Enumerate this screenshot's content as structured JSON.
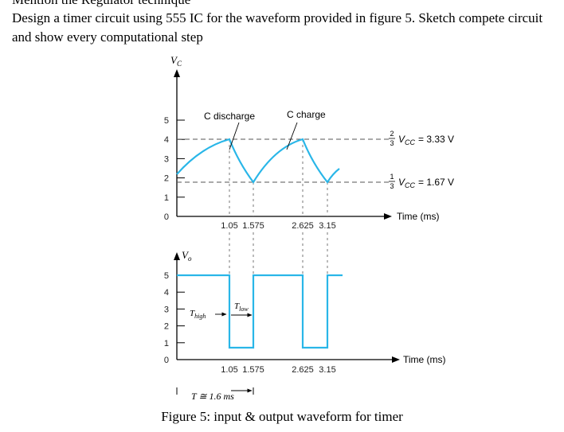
{
  "header_fragment": "Mention the Regulator technique",
  "question": "Design a timer circuit using 555 IC for the waveform provided in figure 5. Sketch compete circuit and show every computational step",
  "caption": "Figure 5: input & output waveform for timer",
  "colors": {
    "trace": "#29b6e8",
    "axis": "#000000",
    "dash": "#555555"
  },
  "top_plot": {
    "ylabel_main": "V",
    "ylabel_sub": "C",
    "yticks": [
      "0",
      "1",
      "2",
      "3",
      "4",
      "5"
    ],
    "xticks": [
      "1.05",
      "1.575",
      "2.625",
      "3.15"
    ],
    "xlabel": "Time (ms)",
    "discharge_label": "C discharge",
    "charge_label": "C charge",
    "upper_level_frac": "2",
    "upper_level_denom": "3",
    "upper_level_text": "V",
    "upper_level_sub": "CC",
    "upper_level_value": "= 3.33 V",
    "lower_level_frac": "1",
    "lower_level_denom": "3",
    "lower_level_text": "V",
    "lower_level_sub": "CC",
    "lower_level_value": "= 1.67 V"
  },
  "bottom_plot": {
    "ylabel_main": "V",
    "ylabel_sub": "o",
    "yticks": [
      "0",
      "1",
      "2",
      "3",
      "4",
      "5"
    ],
    "xticks": [
      "1.05",
      "1.575",
      "2.625",
      "3.15"
    ],
    "xlabel": "Time (ms)",
    "thigh_main": "T",
    "thigh_sub": "high",
    "tlow_main": "T",
    "tlow_sub": "low",
    "period_label": "T ≅ 1.6 ms"
  },
  "chart_data": [
    {
      "type": "line",
      "title": "",
      "xlabel": "Time (ms)",
      "ylabel": "V_C",
      "ylim": [
        0,
        5
      ],
      "x": [
        0,
        1.05,
        1.575,
        2.625,
        3.15,
        3.4
      ],
      "series": [
        {
          "values": [
            1.67,
            3.33,
            1.67,
            3.33,
            1.67,
            2.2
          ]
        }
      ]
    },
    {
      "type": "line",
      "title": "",
      "xlabel": "Time (ms)",
      "ylabel": "V_o",
      "ylim": [
        0,
        5
      ],
      "x": [
        0,
        1.05,
        1.05,
        1.575,
        1.575,
        2.625,
        2.625,
        3.15,
        3.15,
        3.4
      ],
      "series": [
        {
          "values": [
            5,
            5,
            0,
            0,
            5,
            5,
            0,
            0,
            5,
            5
          ]
        }
      ]
    }
  ]
}
